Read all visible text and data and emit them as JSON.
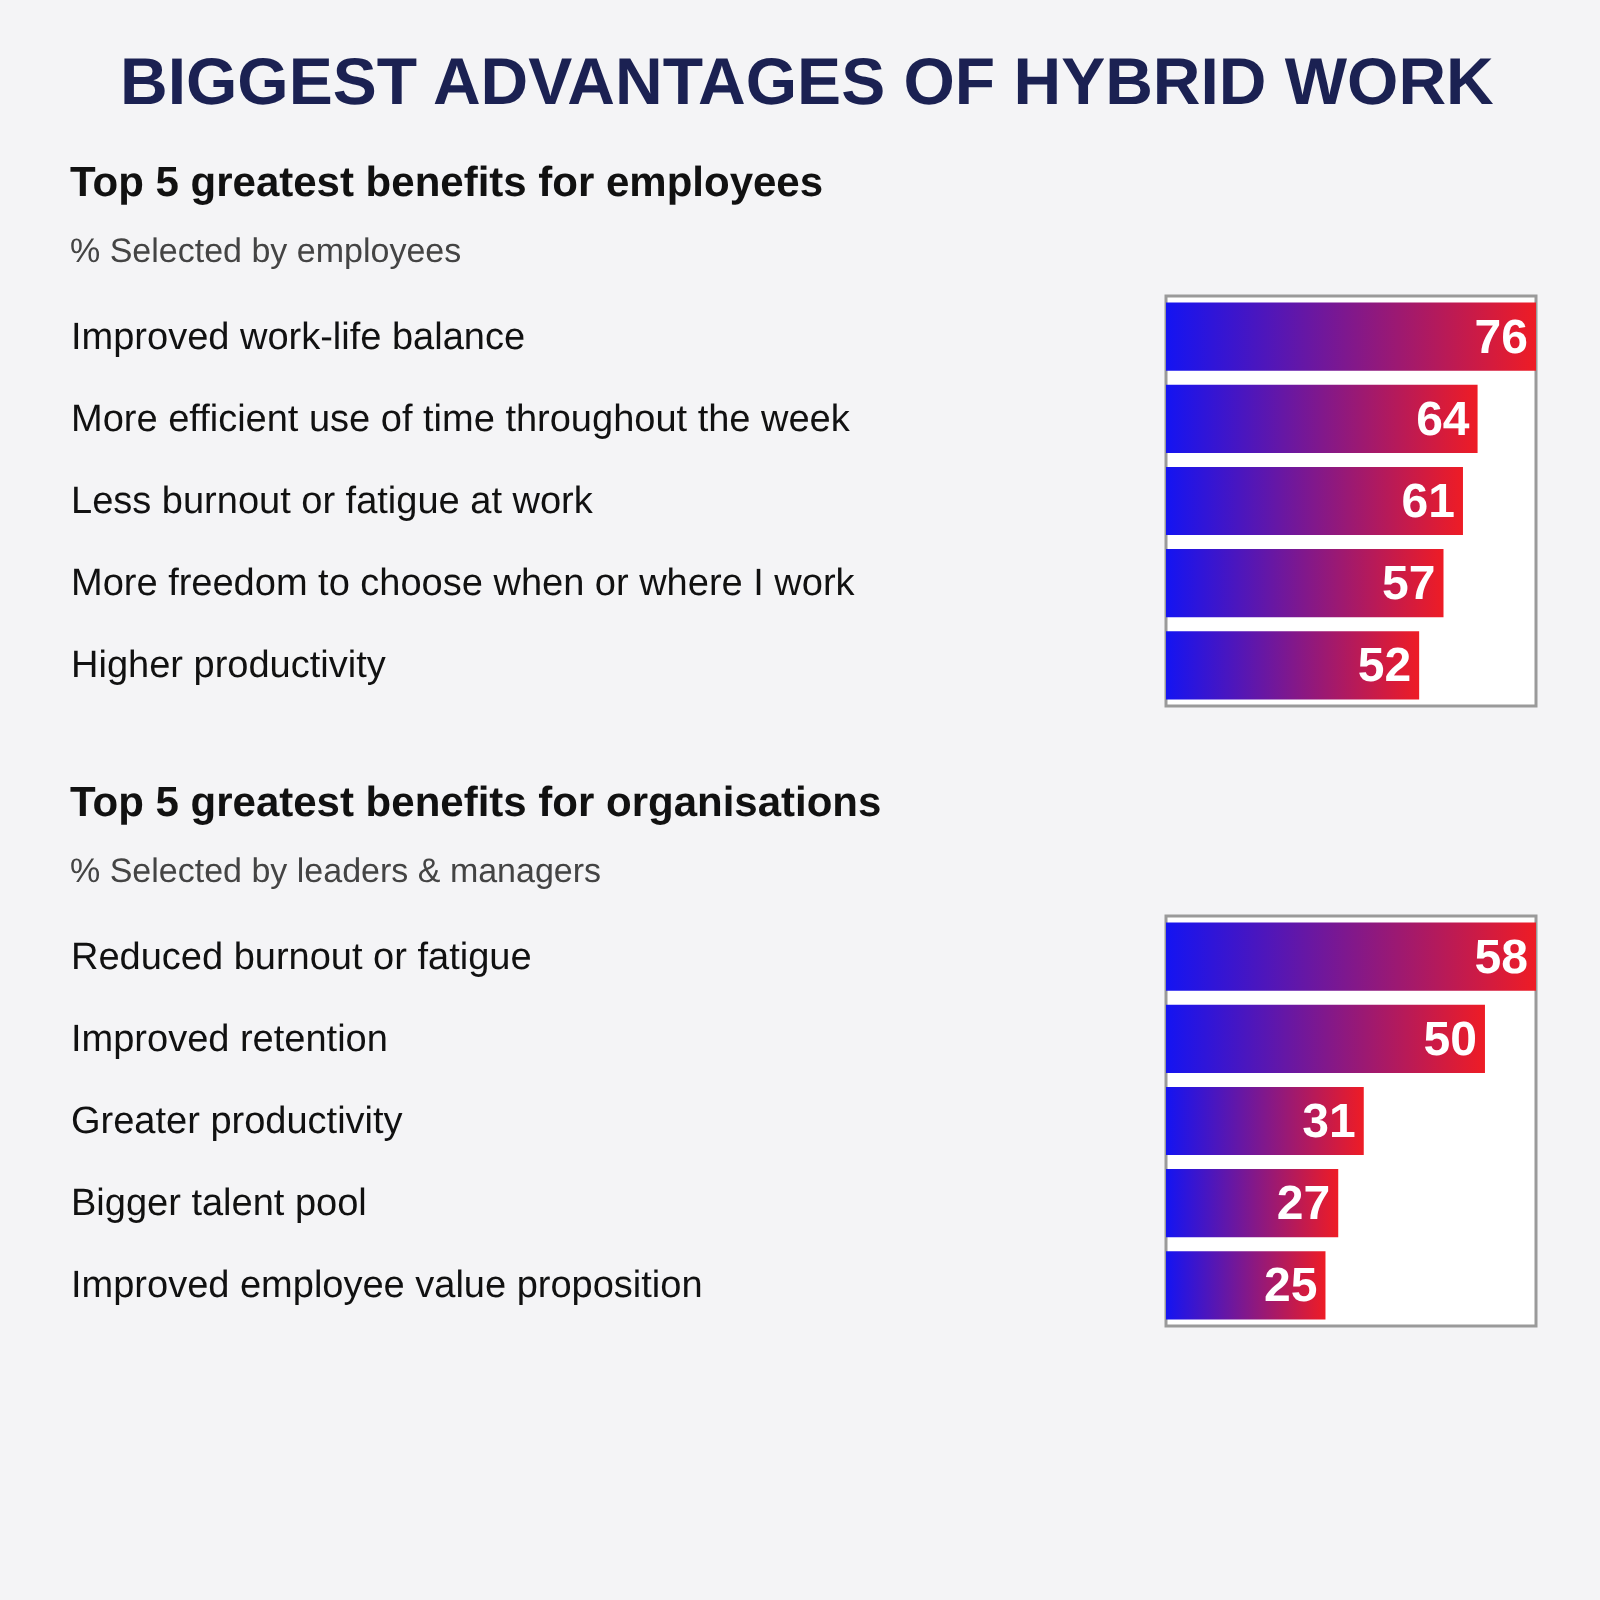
{
  "chart_data": [
    {
      "type": "other",
      "title": "BIGGEST ADVANTAGES OF HYBRID WORK"
    },
    {
      "type": "bar",
      "orientation": "horizontal",
      "title": "Top 5 greatest benefits for employees",
      "subtitle": "% Selected by employees",
      "categories": [
        "Improved work-life balance",
        "More efficient use of time throughout the week",
        "Less burnout or fatigue at work",
        "More freedom to choose when or where I work",
        "Higher productivity"
      ],
      "series": [
        {
          "color": "#ee1c25",
          "values": [
            76,
            64,
            61,
            57,
            52
          ]
        }
      ],
      "xlim": [
        0,
        76
      ],
      "data_labels": true,
      "tick_labels": "y",
      "grid": false
    },
    {
      "type": "bar",
      "orientation": "horizontal",
      "title": "Top 5 greatest benefits for organisations",
      "subtitle": "% Selected by leaders & managers",
      "categories": [
        "Reduced burnout or fatigue",
        "Improved retention",
        "Greater productivity",
        "Bigger talent pool",
        "Improved employee value proposition"
      ],
      "series": [
        {
          "color": "#ee1c25",
          "values": [
            58,
            50,
            31,
            27,
            25
          ]
        }
      ],
      "xlim": [
        0,
        58
      ],
      "data_labels": true,
      "tick_labels": "y",
      "grid": false
    }
  ]
}
